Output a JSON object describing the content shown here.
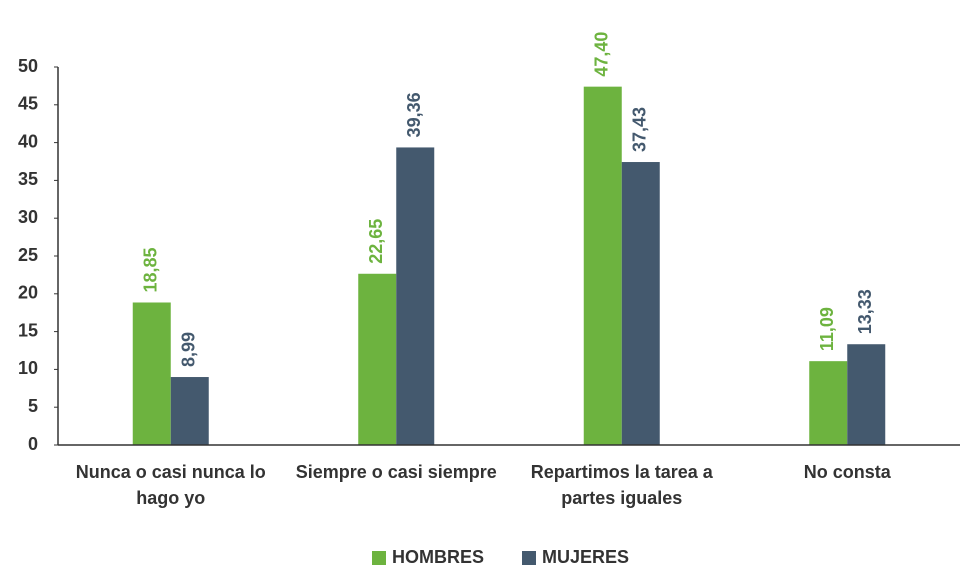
{
  "chart_data": {
    "type": "bar",
    "categories": [
      "Nunca o casi nunca lo hago yo",
      "Siempre o casi siempre",
      "Repartimos la tarea a partes iguales",
      "No consta"
    ],
    "series": [
      {
        "name": "HOMBRES",
        "color": "#6db33f",
        "values": [
          18.85,
          22.65,
          47.4,
          11.09
        ],
        "value_labels": [
          "18,85",
          "22,65",
          "47,40",
          "11,09"
        ]
      },
      {
        "name": "MUJERES",
        "color": "#44596e",
        "values": [
          8.99,
          39.36,
          37.43,
          13.33
        ],
        "value_labels": [
          "8,99",
          "39,36",
          "37,43",
          "13,33"
        ]
      }
    ],
    "ylim": [
      0,
      50
    ],
    "yticks": [
      0,
      5,
      10,
      15,
      20,
      25,
      30,
      35,
      40,
      45,
      50
    ],
    "grid": false,
    "legend": "bottom"
  }
}
